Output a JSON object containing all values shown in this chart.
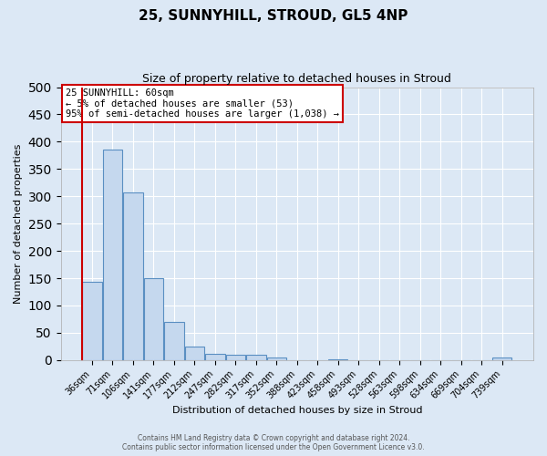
{
  "title": "25, SUNNYHILL, STROUD, GL5 4NP",
  "subtitle": "Size of property relative to detached houses in Stroud",
  "xlabel": "Distribution of detached houses by size in Stroud",
  "ylabel": "Number of detached properties",
  "bar_labels": [
    "36sqm",
    "71sqm",
    "106sqm",
    "141sqm",
    "177sqm",
    "212sqm",
    "247sqm",
    "282sqm",
    "317sqm",
    "352sqm",
    "388sqm",
    "423sqm",
    "458sqm",
    "493sqm",
    "528sqm",
    "563sqm",
    "598sqm",
    "634sqm",
    "669sqm",
    "704sqm",
    "739sqm"
  ],
  "bar_values": [
    143,
    385,
    307,
    150,
    70,
    25,
    12,
    10,
    9,
    5,
    0,
    0,
    1,
    0,
    0,
    0,
    0,
    0,
    0,
    0,
    4
  ],
  "bar_color": "#c5d8ee",
  "bar_edge_color": "#5a8fc2",
  "ylim": [
    0,
    500
  ],
  "yticks": [
    0,
    50,
    100,
    150,
    200,
    250,
    300,
    350,
    400,
    450,
    500
  ],
  "red_line_x": 0,
  "annotation_title": "25 SUNNYHILL: 60sqm",
  "annotation_line1": "← 5% of detached houses are smaller (53)",
  "annotation_line2": "95% of semi-detached houses are larger (1,038) →",
  "annotation_box_facecolor": "#ffffff",
  "annotation_box_edgecolor": "#cc0000",
  "footer_line1": "Contains HM Land Registry data © Crown copyright and database right 2024.",
  "footer_line2": "Contains public sector information licensed under the Open Government Licence v3.0.",
  "background_color": "#dce8f5",
  "plot_background": "#dce8f5",
  "grid_color": "#ffffff",
  "title_fontsize": 11,
  "subtitle_fontsize": 9,
  "tick_fontsize": 7,
  "ylabel_fontsize": 8,
  "xlabel_fontsize": 8
}
